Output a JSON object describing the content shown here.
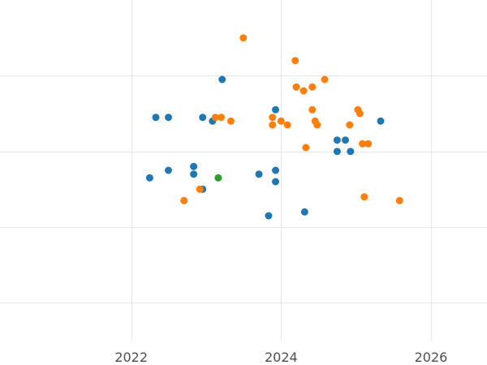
{
  "chart_data": {
    "type": "scatter",
    "title": "",
    "xlabel": "",
    "ylabel": "",
    "x_axis": {
      "kind": "date",
      "min": "2020-04-01",
      "max": "2026-10-01",
      "ticks": [
        "2022-01-01",
        "2024-01-01",
        "2026-01-01"
      ],
      "tick_labels": [
        "2022",
        "2024",
        "2026"
      ]
    },
    "y_axis": {
      "min": 0,
      "max": 9,
      "ticks": [
        1,
        3,
        5,
        7
      ],
      "tick_labels_visible": false
    },
    "grid": true,
    "legend": "none",
    "series": [
      {
        "color": "#1f77b4",
        "points": [
          {
            "x": "2022-04-01",
            "y": 4.3
          },
          {
            "x": "2022-05-01",
            "y": 5.9
          },
          {
            "x": "2022-07-01",
            "y": 5.9
          },
          {
            "x": "2022-07-01",
            "y": 4.5
          },
          {
            "x": "2022-11-01",
            "y": 4.6
          },
          {
            "x": "2022-11-01",
            "y": 4.4
          },
          {
            "x": "2022-12-15",
            "y": 4.0
          },
          {
            "x": "2022-12-15",
            "y": 5.9
          },
          {
            "x": "2023-02-01",
            "y": 5.8
          },
          {
            "x": "2023-03-20",
            "y": 6.9
          },
          {
            "x": "2023-09-15",
            "y": 4.4
          },
          {
            "x": "2023-11-01",
            "y": 3.3
          },
          {
            "x": "2023-12-05",
            "y": 4.5
          },
          {
            "x": "2023-12-05",
            "y": 4.2
          },
          {
            "x": "2023-12-05",
            "y": 6.1
          },
          {
            "x": "2024-04-25",
            "y": 3.4
          },
          {
            "x": "2024-10-01",
            "y": 5.0
          },
          {
            "x": "2024-10-01",
            "y": 5.3
          },
          {
            "x": "2024-11-10",
            "y": 5.3
          },
          {
            "x": "2024-12-05",
            "y": 5.0
          },
          {
            "x": "2025-05-01",
            "y": 5.8
          }
        ]
      },
      {
        "color": "#ff7f0e",
        "points": [
          {
            "x": "2022-09-15",
            "y": 3.7
          },
          {
            "x": "2022-12-01",
            "y": 4.0
          },
          {
            "x": "2023-02-15",
            "y": 5.9
          },
          {
            "x": "2023-03-15",
            "y": 5.9
          },
          {
            "x": "2023-05-01",
            "y": 5.8
          },
          {
            "x": "2023-07-01",
            "y": 8.0
          },
          {
            "x": "2023-11-20",
            "y": 5.9
          },
          {
            "x": "2023-11-20",
            "y": 5.7
          },
          {
            "x": "2024-01-01",
            "y": 5.8
          },
          {
            "x": "2024-02-01",
            "y": 5.7
          },
          {
            "x": "2024-03-10",
            "y": 7.4
          },
          {
            "x": "2024-03-15",
            "y": 6.7
          },
          {
            "x": "2024-04-20",
            "y": 6.6
          },
          {
            "x": "2024-05-01",
            "y": 5.1
          },
          {
            "x": "2024-06-01",
            "y": 6.7
          },
          {
            "x": "2024-06-01",
            "y": 6.1
          },
          {
            "x": "2024-06-15",
            "y": 5.8
          },
          {
            "x": "2024-06-25",
            "y": 5.7
          },
          {
            "x": "2024-08-01",
            "y": 6.9
          },
          {
            "x": "2024-12-01",
            "y": 5.7
          },
          {
            "x": "2025-01-10",
            "y": 6.1
          },
          {
            "x": "2025-01-20",
            "y": 6.0
          },
          {
            "x": "2025-02-01",
            "y": 5.2
          },
          {
            "x": "2025-02-10",
            "y": 3.8
          },
          {
            "x": "2025-03-01",
            "y": 5.2
          },
          {
            "x": "2025-08-01",
            "y": 3.7
          }
        ]
      },
      {
        "color": "#2ca02c",
        "points": [
          {
            "x": "2023-03-01",
            "y": 4.3
          }
        ]
      }
    ]
  }
}
